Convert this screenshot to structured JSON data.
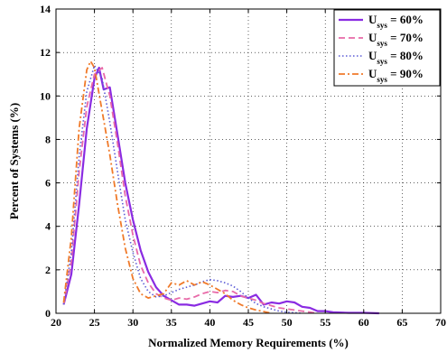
{
  "chart_data": {
    "type": "line",
    "xlabel": "Normalized Memory Requirements (%)",
    "ylabel": "Percent of Systems (%)",
    "xlim": [
      20,
      70
    ],
    "ylim": [
      0,
      14
    ],
    "xticks": [
      20,
      25,
      30,
      35,
      40,
      45,
      50,
      55,
      60,
      65,
      70
    ],
    "yticks": [
      0,
      2,
      4,
      6,
      8,
      10,
      12,
      14
    ],
    "grid": true,
    "legend_position": "top-right",
    "series": [
      {
        "name": "U_sys = 60%",
        "legend_main": "U",
        "legend_sub": "sys",
        "legend_value": " = 60%",
        "color": "#8a2be2",
        "dash": "",
        "width": 2.2,
        "points": [
          [
            21,
            0.4
          ],
          [
            22,
            1.8
          ],
          [
            23,
            5.0
          ],
          [
            24,
            8.5
          ],
          [
            25,
            10.8
          ],
          [
            25.6,
            11.3
          ],
          [
            26.2,
            10.3
          ],
          [
            27,
            10.4
          ],
          [
            28,
            8.2
          ],
          [
            29,
            6.0
          ],
          [
            30,
            4.3
          ],
          [
            31,
            2.9
          ],
          [
            32,
            1.9
          ],
          [
            33,
            1.2
          ],
          [
            34,
            0.8
          ],
          [
            35,
            0.6
          ],
          [
            36,
            0.4
          ],
          [
            37,
            0.4
          ],
          [
            38,
            0.35
          ],
          [
            39,
            0.45
          ],
          [
            40,
            0.55
          ],
          [
            41,
            0.5
          ],
          [
            42,
            0.8
          ],
          [
            43,
            0.75
          ],
          [
            44,
            0.8
          ],
          [
            45,
            0.7
          ],
          [
            46,
            0.85
          ],
          [
            47,
            0.4
          ],
          [
            48,
            0.5
          ],
          [
            49,
            0.45
          ],
          [
            50,
            0.55
          ],
          [
            51,
            0.5
          ],
          [
            52,
            0.3
          ],
          [
            53,
            0.25
          ],
          [
            54,
            0.1
          ],
          [
            55,
            0.1
          ],
          [
            56,
            0.05
          ],
          [
            58,
            0.02
          ],
          [
            60,
            0.02
          ],
          [
            62,
            0.0
          ]
        ]
      },
      {
        "name": "U_sys = 70%",
        "legend_main": "U",
        "legend_sub": "sys",
        "legend_value": " = 70%",
        "color": "#e86aa8",
        "dash": "7,4",
        "width": 1.8,
        "points": [
          [
            21,
            0.4
          ],
          [
            22,
            2.4
          ],
          [
            23,
            6.5
          ],
          [
            24,
            9.5
          ],
          [
            25,
            11.0
          ],
          [
            26,
            11.3
          ],
          [
            27,
            10.0
          ],
          [
            28,
            7.8
          ],
          [
            29,
            5.4
          ],
          [
            30,
            3.6
          ],
          [
            31,
            2.2
          ],
          [
            32,
            1.4
          ],
          [
            33,
            0.9
          ],
          [
            34,
            0.7
          ],
          [
            35,
            0.6
          ],
          [
            36,
            0.7
          ],
          [
            37,
            0.65
          ],
          [
            38,
            0.75
          ],
          [
            39,
            0.9
          ],
          [
            40,
            1.0
          ],
          [
            41,
            0.95
          ],
          [
            42,
            1.05
          ],
          [
            43,
            1.0
          ],
          [
            44,
            0.8
          ],
          [
            45,
            0.7
          ],
          [
            46,
            0.6
          ],
          [
            47,
            0.45
          ],
          [
            48,
            0.35
          ],
          [
            49,
            0.25
          ],
          [
            50,
            0.2
          ],
          [
            51,
            0.15
          ],
          [
            52,
            0.1
          ],
          [
            53,
            0.05
          ],
          [
            54,
            0.0
          ]
        ]
      },
      {
        "name": "U_sys = 80%",
        "legend_main": "U",
        "legend_sub": "sys",
        "legend_value": " = 80%",
        "color": "#5b5bd6",
        "dash": "1.5,2.5",
        "width": 1.6,
        "points": [
          [
            21,
            0.4
          ],
          [
            22,
            2.8
          ],
          [
            23,
            7.2
          ],
          [
            24,
            10.2
          ],
          [
            25,
            11.4
          ],
          [
            26,
            10.8
          ],
          [
            27,
            8.8
          ],
          [
            28,
            6.5
          ],
          [
            29,
            4.3
          ],
          [
            30,
            2.8
          ],
          [
            31,
            1.6
          ],
          [
            32,
            1.0
          ],
          [
            33,
            0.75
          ],
          [
            34,
            0.8
          ],
          [
            35,
            0.95
          ],
          [
            36,
            1.1
          ],
          [
            37,
            1.2
          ],
          [
            38,
            1.3
          ],
          [
            39,
            1.45
          ],
          [
            40,
            1.55
          ],
          [
            41,
            1.5
          ],
          [
            42,
            1.4
          ],
          [
            43,
            1.25
          ],
          [
            44,
            1.0
          ],
          [
            45,
            0.7
          ],
          [
            46,
            0.45
          ],
          [
            47,
            0.3
          ],
          [
            48,
            0.2
          ],
          [
            49,
            0.1
          ],
          [
            50,
            0.05
          ],
          [
            52,
            0.0
          ]
        ]
      },
      {
        "name": "U_sys = 90%",
        "legend_main": "U",
        "legend_sub": "sys",
        "legend_value": " = 90%",
        "color": "#f07a2a",
        "dash": "7,3,2,3",
        "width": 1.8,
        "points": [
          [
            21,
            0.5
          ],
          [
            22,
            3.5
          ],
          [
            23,
            8.5
          ],
          [
            24,
            11.2
          ],
          [
            24.5,
            11.6
          ],
          [
            25,
            11.3
          ],
          [
            26,
            9.3
          ],
          [
            27,
            7.3
          ],
          [
            28,
            5.0
          ],
          [
            29,
            3.0
          ],
          [
            30,
            1.6
          ],
          [
            31,
            0.9
          ],
          [
            32,
            0.7
          ],
          [
            33,
            0.8
          ],
          [
            34,
            0.9
          ],
          [
            35,
            1.4
          ],
          [
            36,
            1.3
          ],
          [
            37,
            1.5
          ],
          [
            38,
            1.3
          ],
          [
            39,
            1.45
          ],
          [
            40,
            1.3
          ],
          [
            41,
            1.1
          ],
          [
            42,
            0.9
          ],
          [
            43,
            0.6
          ],
          [
            44,
            0.4
          ],
          [
            45,
            0.25
          ],
          [
            46,
            0.15
          ],
          [
            47,
            0.08
          ],
          [
            48,
            0.0
          ]
        ]
      }
    ]
  }
}
